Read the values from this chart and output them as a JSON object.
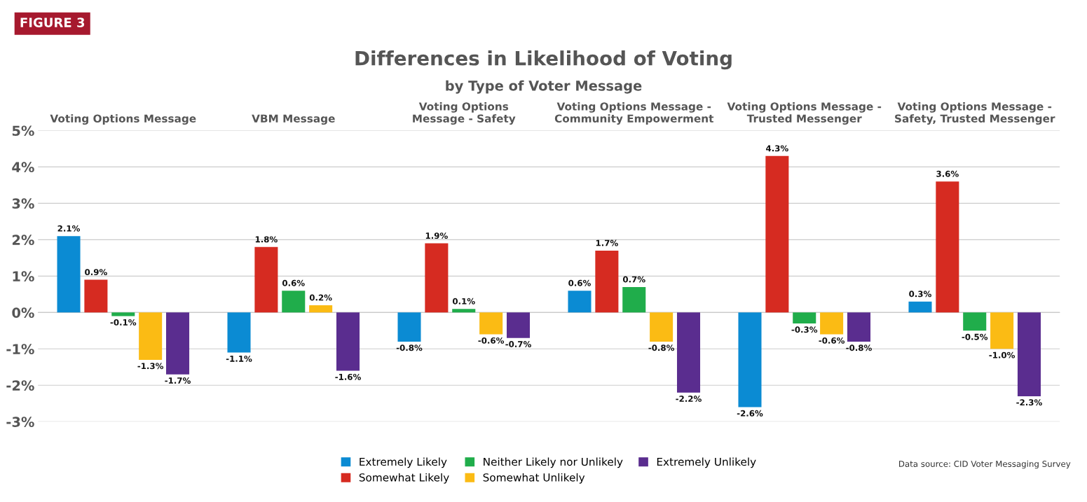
{
  "chart_data": {
    "type": "bar",
    "title": "Differences in Likelihood of Voting",
    "subtitle": "by Type of Voter Message",
    "categories": [
      "Voting Options Message",
      "VBM Message",
      "Voting Options\nMessage - Safety",
      "Voting Options Message -\nCommunity Empowerment",
      "Voting Options Message -\nTrusted Messenger",
      "Voting Options Message -\nSafety, Trusted Messenger"
    ],
    "series": [
      {
        "name": "Extremely Likely",
        "color": "#0b8bd3",
        "values": [
          2.1,
          -1.1,
          -0.8,
          0.6,
          -2.6,
          0.3
        ],
        "value_labels": [
          "2.1%",
          "-1.1%",
          "-0.8%",
          "0.6%",
          "-2.6%",
          "0.3%"
        ]
      },
      {
        "name": "Somewhat Likely",
        "color": "#d62b21",
        "values": [
          0.9,
          1.8,
          1.9,
          1.7,
          4.3,
          3.6
        ],
        "value_labels": [
          "0.9%",
          "1.8%",
          "1.9%",
          "1.7%",
          "4.3%",
          "3.6%"
        ]
      },
      {
        "name": "Neither Likely nor Unlikely",
        "color": "#20ad4b",
        "values": [
          -0.1,
          0.6,
          0.1,
          0.7,
          -0.3,
          -0.5
        ],
        "value_labels": [
          "-0.1%",
          "0.6%",
          "0.1%",
          "0.7%",
          "-0.3%",
          "-0.5%"
        ]
      },
      {
        "name": "Somewhat Unlikely",
        "color": "#fbbb14",
        "values": [
          -1.3,
          0.2,
          -0.6,
          -0.8,
          -0.6,
          -1.0
        ],
        "value_labels": [
          "-1.3%",
          "0.2%",
          "-0.6%",
          "-0.8%",
          "-0.6%",
          "-1.0%"
        ]
      },
      {
        "name": "Extremely Unlikely",
        "color": "#5a2d8f",
        "values": [
          -1.7,
          -1.6,
          -0.7,
          -2.2,
          -0.8,
          -2.3
        ],
        "value_labels": [
          "-1.7%",
          "-1.6%",
          "-0.7%",
          "-2.2%",
          "-0.8%",
          "-2.3%"
        ]
      }
    ],
    "ylim": [
      -3,
      5
    ],
    "yticks": [
      {
        "value": -3,
        "label": "-3%"
      },
      {
        "value": -2,
        "label": "-2%"
      },
      {
        "value": -1,
        "label": "-1%"
      },
      {
        "value": 0,
        "label": "0%"
      },
      {
        "value": 1,
        "label": "1%"
      },
      {
        "value": 2,
        "label": "2%"
      },
      {
        "value": 3,
        "label": "3%"
      },
      {
        "value": 4,
        "label": "4%"
      },
      {
        "value": 5,
        "label": "5%"
      }
    ],
    "grid": "y",
    "legend": "bottom",
    "annotations": [
      "FIGURE 3",
      "Data source: CID Voter Messaging Survey"
    ]
  }
}
